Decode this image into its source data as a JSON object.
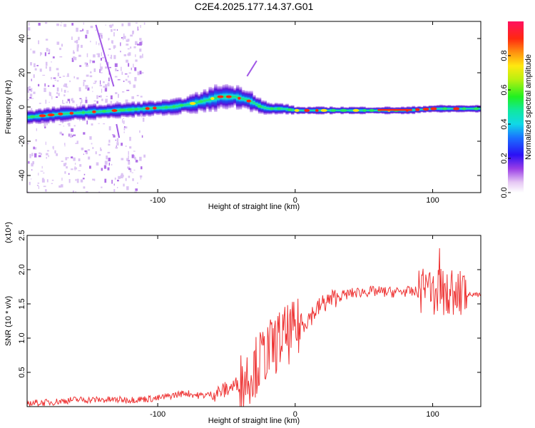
{
  "title": "C2E4.2025.177.14.37.G01",
  "chart_data": [
    {
      "type": "heatmap",
      "xlabel": "Height of straight line (km)",
      "ylabel": "Frequency (Hz)",
      "xlim": [
        -195,
        135
      ],
      "ylim": [
        -50,
        50
      ],
      "xticks": [
        -100,
        0,
        100
      ],
      "yticks": [
        -40,
        -20,
        0,
        20,
        40
      ],
      "colorbar": {
        "label": "Normalized spectral amplitude",
        "range": [
          0,
          1
        ],
        "ticks": [
          0.0,
          0.2,
          0.4,
          0.6,
          0.8
        ]
      },
      "ridge": {
        "x": [
          -195,
          -170,
          -150,
          -130,
          -110,
          -90,
          -75,
          -65,
          -55,
          -45,
          -35,
          -25,
          -20,
          -10,
          0,
          20,
          50,
          80,
          100,
          120,
          135
        ],
        "y": [
          -6,
          -4,
          -3,
          -2,
          -1,
          0,
          2,
          4,
          6,
          6,
          4,
          0,
          -1,
          -1,
          -2,
          -2,
          -2,
          -2,
          -1,
          -1,
          -1
        ],
        "width_hz": [
          4,
          4,
          4,
          4,
          4,
          4,
          5,
          6,
          7,
          6,
          6,
          4,
          3,
          3,
          2,
          2,
          2,
          2,
          2,
          2,
          2
        ]
      }
    },
    {
      "type": "line",
      "xlabel": "Height of straight line (km)",
      "ylabel": "SNR (10 * v/v)",
      "yscale_label": "(x10⁴)",
      "xlim": [
        -195,
        135
      ],
      "ylim": [
        0,
        2.5
      ],
      "xticks": [
        -100,
        0,
        100
      ],
      "yticks": [
        0.5,
        1.0,
        1.5,
        2.0,
        2.5
      ],
      "color": "#ee3333",
      "series": [
        {
          "x": [
            -195,
            -180,
            -160,
            -140,
            -120,
            -100,
            -90,
            -80,
            -70,
            -60,
            -50,
            -40,
            -30,
            -25,
            -20,
            -15,
            -10,
            -5,
            0,
            5,
            10,
            15,
            20,
            30,
            40,
            50,
            60,
            70,
            80,
            90,
            100,
            110,
            115,
            120,
            125,
            135
          ],
          "values": [
            0.05,
            0.06,
            0.1,
            0.1,
            0.1,
            0.12,
            0.16,
            0.2,
            0.16,
            0.18,
            0.25,
            0.35,
            0.55,
            0.7,
            0.8,
            0.9,
            1.0,
            1.05,
            1.1,
            1.2,
            1.3,
            1.4,
            1.5,
            1.6,
            1.65,
            1.68,
            1.68,
            1.67,
            1.68,
            1.67,
            1.68,
            1.67,
            1.66,
            1.65,
            1.64,
            1.62
          ]
        }
      ]
    }
  ]
}
